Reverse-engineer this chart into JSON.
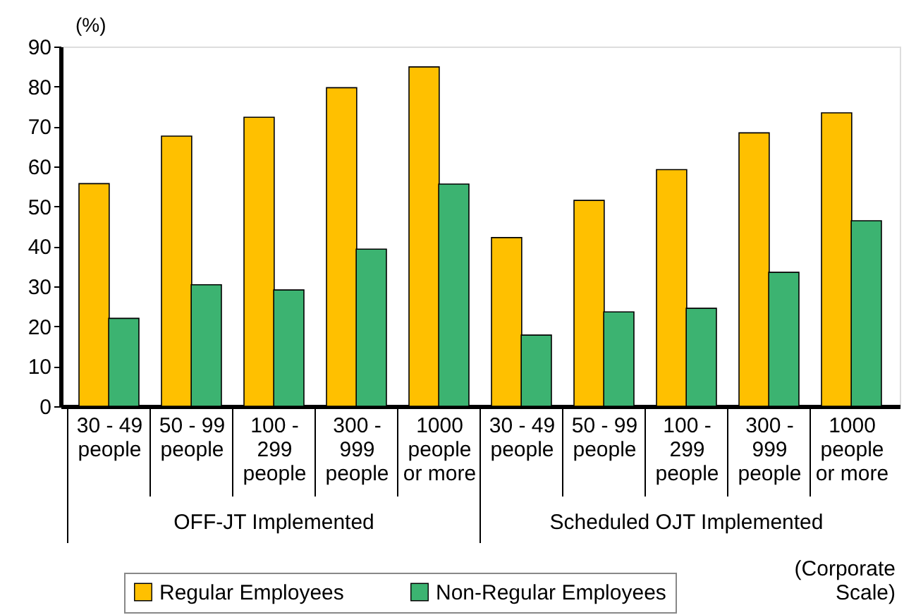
{
  "chart_data": {
    "type": "bar",
    "ylabel": "(%)",
    "xlabel": "(Corporate\nScale)",
    "categories": [
      "30 - 49\npeople",
      "50 - 99\npeople",
      "100 -\n299\npeople",
      "300 -\n999\npeople",
      "1000\npeople\nor more",
      "30 - 49\npeople",
      "50 - 99\npeople",
      "100 -\n299\npeople",
      "300 -\n999\npeople",
      "1000\npeople\nor more"
    ],
    "series": [
      {
        "name": "Regular Employees",
        "color": "#ffc000",
        "values": [
          55.7,
          67.6,
          72.3,
          79.7,
          84.9,
          42.2,
          51.5,
          59.2,
          68.4,
          73.4
        ]
      },
      {
        "name": "Non-Regular Employees",
        "color": "#3cb371",
        "values": [
          22.0,
          30.4,
          29.1,
          39.3,
          55.6,
          17.8,
          23.6,
          24.5,
          33.5,
          46.4
        ]
      }
    ],
    "annotations": [
      "OFF-JT Implemented",
      "Scheduled OJT Implemented"
    ],
    "ylim": [
      0,
      90
    ],
    "yticks": [
      0,
      10,
      20,
      30,
      40,
      50,
      60,
      70,
      80,
      90
    ],
    "grid": false,
    "legend": "bottom"
  }
}
